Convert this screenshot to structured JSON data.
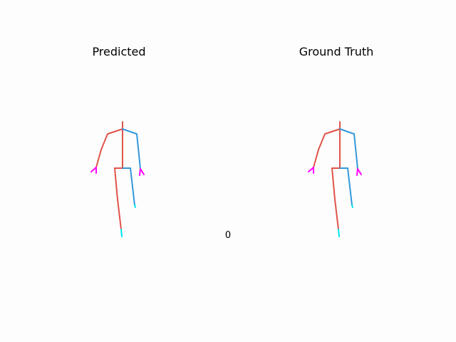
{
  "panels": [
    {
      "title": "Predicted"
    },
    {
      "title": "Ground Truth"
    }
  ],
  "frame_index": "0",
  "colors": {
    "right_side": "#e0534a",
    "left_side": "#3498db",
    "hands": "#ff00ff",
    "feet": "#00e5ee"
  }
}
